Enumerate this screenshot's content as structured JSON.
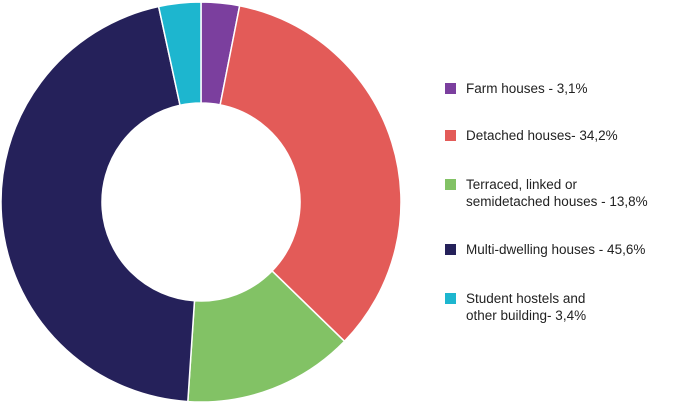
{
  "chart_data": {
    "type": "pie",
    "categories": [
      "Farm houses - 3,1%",
      "Detached houses- 34,2%",
      "Terraced, linked or semidetached houses - 13,8%",
      "Multi-dwelling houses - 45,6%",
      "Student hostels and other building- 3,4%"
    ],
    "legend_lines": [
      [
        "Farm houses - 3,1%"
      ],
      [
        "Detached houses- 34,2%"
      ],
      [
        "Terraced, linked or",
        "semidetached houses - 13,8%"
      ],
      [
        "Multi-dwelling houses - 45,6%"
      ],
      [
        "Student hostels and",
        "other building- 3,4%"
      ]
    ],
    "values": [
      3.1,
      34.2,
      13.8,
      45.6,
      3.4
    ],
    "colors": [
      "#7B3F9E",
      "#E35B58",
      "#82C265",
      "#25215A",
      "#1DB6CF"
    ],
    "donut": true,
    "legend_position": "right"
  }
}
